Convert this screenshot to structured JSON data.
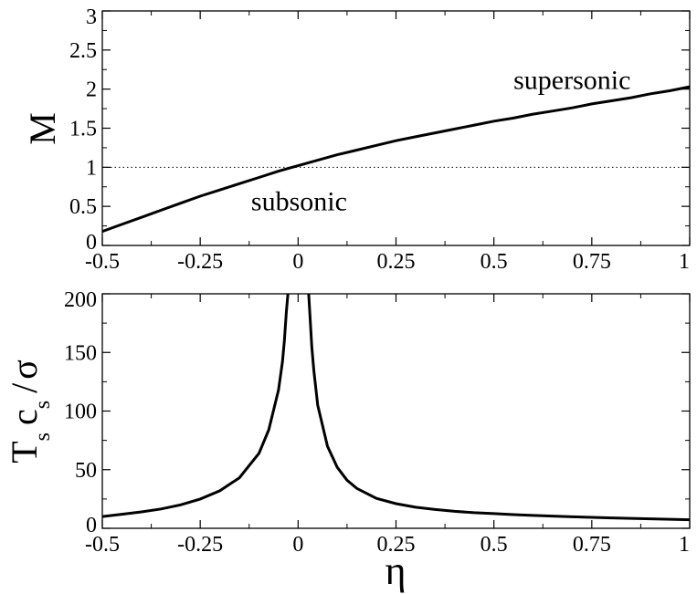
{
  "chart_data": [
    {
      "type": "line",
      "title": "",
      "xlabel": "",
      "ylabel": "M",
      "xlim": [
        -0.5,
        1
      ],
      "ylim": [
        0,
        3
      ],
      "x_ticks": [
        "-0.5",
        "-0.25",
        "0",
        "0.25",
        "0.5",
        "0.75",
        "1"
      ],
      "y_ticks": [
        "0",
        "0.5",
        "1",
        "1.5",
        "2",
        "2.5",
        "3"
      ],
      "grid": false,
      "reference_line": {
        "y": 1,
        "style": "dotted"
      },
      "annotations": [
        {
          "text": "supersonic",
          "x": 0.55,
          "y": 2.0
        },
        {
          "text": "subsonic",
          "x": -0.12,
          "y": 0.45
        }
      ],
      "series": [
        {
          "x": [
            -0.5,
            -0.45,
            -0.4,
            -0.35,
            -0.3,
            -0.25,
            -0.2,
            -0.15,
            -0.1,
            -0.05,
            0,
            0.05,
            0.1,
            0.15,
            0.2,
            0.25,
            0.3,
            0.35,
            0.4,
            0.45,
            0.5,
            0.55,
            0.6,
            0.65,
            0.7,
            0.75,
            0.8,
            0.85,
            0.9,
            0.95,
            1
          ],
          "values": [
            0.18,
            0.27,
            0.36,
            0.45,
            0.54,
            0.63,
            0.71,
            0.79,
            0.87,
            0.95,
            1.02,
            1.09,
            1.16,
            1.22,
            1.28,
            1.34,
            1.39,
            1.44,
            1.49,
            1.54,
            1.59,
            1.63,
            1.68,
            1.72,
            1.76,
            1.81,
            1.85,
            1.89,
            1.94,
            1.98,
            2.03
          ]
        }
      ]
    },
    {
      "type": "line",
      "title": "",
      "xlabel": "η",
      "ylabel": "T",
      "ylabel_parts": {
        "t": "T",
        "t_sub": "s",
        "c": "c",
        "c_sub": "s",
        "slash": "/",
        "sigma": "σ"
      },
      "xlim": [
        -0.5,
        1
      ],
      "ylim": [
        0,
        200
      ],
      "x_ticks": [
        "-0.5",
        "-0.25",
        "0",
        "0.25",
        "0.5",
        "0.75",
        "1"
      ],
      "y_ticks": [
        "0",
        "50",
        "100",
        "150",
        "200"
      ],
      "grid": false,
      "series": [
        {
          "x": [
            -0.5,
            -0.45,
            -0.4,
            -0.35,
            -0.3,
            -0.25,
            -0.2,
            -0.15,
            -0.1,
            -0.075,
            -0.05,
            -0.04,
            -0.035,
            -0.03,
            -0.026,
            0.027,
            0.03,
            0.035,
            0.04,
            0.05,
            0.075,
            0.1,
            0.125,
            0.15,
            0.2,
            0.25,
            0.3,
            0.35,
            0.4,
            0.45,
            0.5,
            0.55,
            0.6,
            0.65,
            0.7,
            0.75,
            0.8,
            0.85,
            0.9,
            0.95,
            1
          ],
          "values": [
            10,
            12,
            14,
            16.5,
            20,
            25,
            32,
            43,
            64,
            84,
            118,
            142,
            160,
            185,
            200,
            200,
            183,
            155,
            135,
            105,
            70,
            52,
            41,
            34,
            25.5,
            21,
            18,
            16,
            14.5,
            13.3,
            12.5,
            11.7,
            11,
            10.4,
            9.8,
            9.3,
            8.9,
            8.5,
            8.1,
            7.7,
            7.3
          ]
        }
      ]
    }
  ]
}
